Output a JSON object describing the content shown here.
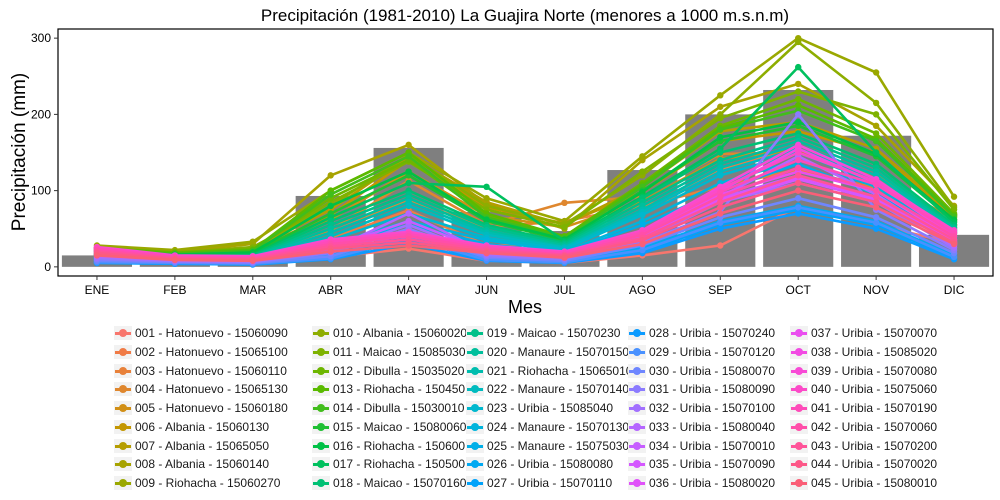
{
  "colors": {
    "bar": "#7f7f7f",
    "axis": "#000000",
    "text": "#000000"
  },
  "chart_data": {
    "type": "bar+line",
    "title": "Precipitación (1981-2010) La Guajira Norte (menores a 1000 m.s.n.m)",
    "xlabel": "Mes",
    "ylabel": "Precipitación (mm)",
    "ylim": [
      -12,
      312
    ],
    "yticks": [
      "0",
      "100",
      "200",
      "300"
    ],
    "ytick_values": [
      0,
      100,
      200,
      300
    ],
    "categories": [
      "ENE",
      "FEB",
      "MAR",
      "ABR",
      "MAY",
      "JUN",
      "JUL",
      "AGO",
      "SEP",
      "OCT",
      "NOV",
      "DIC"
    ],
    "bar_values": [
      15,
      10,
      12,
      93,
      156,
      72,
      47,
      127,
      200,
      232,
      172,
      42
    ],
    "grid": false,
    "legend_position": "bottom",
    "series": [
      {
        "name": "001 - Hatonuevo - 15060090",
        "color": "#F8766D",
        "values": [
          17,
          10,
          8,
          13,
          24,
          8,
          5,
          15,
          28,
          79,
          55,
          31
        ]
      },
      {
        "name": "002 - Hatonuevo - 15065100",
        "color": "#F07B46",
        "values": [
          14,
          13,
          14,
          37,
          74,
          28,
          30,
          72,
          128,
          155,
          115,
          52
        ]
      },
      {
        "name": "003 - Hatonuevo - 15060110",
        "color": "#E8813A",
        "values": [
          15,
          14,
          17,
          45,
          88,
          52,
          60,
          80,
          105,
          128,
          103,
          55
        ]
      },
      {
        "name": "004 - Hatonuevo - 15065130",
        "color": "#DF872E",
        "values": [
          13,
          15,
          18,
          48,
          113,
          55,
          84,
          92,
          148,
          150,
          115,
          55
        ]
      },
      {
        "name": "005 - Hatonuevo - 15060180",
        "color": "#D18F16",
        "values": [
          13,
          16,
          20,
          62,
          125,
          67,
          52,
          86,
          142,
          153,
          120,
          62
        ]
      },
      {
        "name": "006 - Albania - 15060130",
        "color": "#C39600",
        "values": [
          15,
          17,
          22,
          68,
          140,
          78,
          57,
          98,
          165,
          178,
          150,
          65
        ]
      },
      {
        "name": "007 - Albania - 15065050",
        "color": "#B59D00",
        "values": [
          16,
          18,
          24,
          75,
          145,
          85,
          55,
          105,
          178,
          190,
          155,
          68
        ]
      },
      {
        "name": "008 - Albania - 15060140",
        "color": "#A7A300",
        "values": [
          25,
          20,
          30,
          120,
          160,
          82,
          50,
          140,
          210,
          240,
          185,
          80
        ]
      },
      {
        "name": "009 - Riohacha - 15060270",
        "color": "#9AA800",
        "values": [
          28,
          22,
          33,
          100,
          150,
          90,
          60,
          145,
          225,
          300,
          255,
          92
        ]
      },
      {
        "name": "010 - Albania - 15060020",
        "color": "#8DAD00",
        "values": [
          22,
          19,
          26,
          80,
          147,
          80,
          56,
          120,
          200,
          295,
          215,
          78
        ]
      },
      {
        "name": "011 - Maicao - 15085030",
        "color": "#7EB200",
        "values": [
          20,
          17,
          25,
          85,
          138,
          75,
          52,
          125,
          195,
          230,
          200,
          75
        ]
      },
      {
        "name": "012 - Dibulla - 15035020",
        "color": "#6DB600",
        "values": [
          25,
          19,
          23,
          90,
          140,
          68,
          40,
          110,
          185,
          220,
          175,
          70
        ]
      },
      {
        "name": "013 - Riohacha - 15045010",
        "color": "#5ABA00",
        "values": [
          24,
          18,
          22,
          100,
          150,
          70,
          40,
          108,
          182,
          212,
          168,
          68
        ]
      },
      {
        "name": "014 - Dibulla - 15030010",
        "color": "#41BD1C",
        "values": [
          22,
          17,
          21,
          95,
          145,
          65,
          38,
          105,
          180,
          205,
          165,
          66
        ]
      },
      {
        "name": "015 - Maicao - 15080060",
        "color": "#1FBF33",
        "values": [
          18,
          15,
          18,
          70,
          120,
          60,
          35,
          100,
          165,
          185,
          145,
          60
        ]
      },
      {
        "name": "016 - Riohacha - 15060010",
        "color": "#00C046",
        "values": [
          20,
          16,
          19,
          80,
          125,
          62,
          36,
          98,
          170,
          190,
          148,
          62
        ]
      },
      {
        "name": "017 - Riohacha - 15050010",
        "color": "#00C05E",
        "values": [
          16,
          14,
          16,
          65,
          110,
          105,
          34,
          92,
          155,
          262,
          150,
          58
        ]
      },
      {
        "name": "018 - Maicao - 15070160",
        "color": "#00C074",
        "values": [
          15,
          13,
          15,
          60,
          100,
          55,
          32,
          90,
          150,
          175,
          135,
          55
        ]
      },
      {
        "name": "019 - Maicao - 15070230",
        "color": "#00C089",
        "values": [
          14,
          12,
          14,
          55,
          95,
          52,
          30,
          85,
          140,
          170,
          130,
          52
        ]
      },
      {
        "name": "020 - Manaure - 15070150",
        "color": "#00BF9C",
        "values": [
          13,
          11,
          13,
          50,
          90,
          48,
          28,
          80,
          135,
          165,
          125,
          50
        ]
      },
      {
        "name": "021 - Riohacha - 15065010",
        "color": "#00BDAE",
        "values": [
          12,
          10,
          12,
          45,
          85,
          45,
          26,
          75,
          130,
          160,
          120,
          48
        ]
      },
      {
        "name": "022 - Manaure - 15070140",
        "color": "#00BBBF",
        "values": [
          12,
          10,
          11,
          40,
          80,
          42,
          25,
          72,
          125,
          155,
          115,
          46
        ]
      },
      {
        "name": "023 - Uribia - 15085040",
        "color": "#00B8CE",
        "values": [
          11,
          9,
          10,
          35,
          70,
          38,
          23,
          68,
          120,
          150,
          110,
          44
        ]
      },
      {
        "name": "024 - Manaure - 15070130",
        "color": "#00B4DC",
        "values": [
          10,
          9,
          10,
          30,
          60,
          35,
          20,
          60,
          110,
          140,
          105,
          40
        ]
      },
      {
        "name": "025 - Manaure - 15075030",
        "color": "#00AFE8",
        "values": [
          10,
          8,
          9,
          28,
          55,
          30,
          18,
          55,
          100,
          135,
          95,
          38
        ]
      },
      {
        "name": "026 - Uribia - 15080080",
        "color": "#00A9F2",
        "values": [
          8,
          7,
          6,
          15,
          40,
          12,
          8,
          25,
          60,
          80,
          60,
          15
        ]
      },
      {
        "name": "027 - Uribia - 15070110",
        "color": "#00A2FA",
        "values": [
          6,
          5,
          4,
          12,
          35,
          10,
          6,
          20,
          55,
          75,
          55,
          12
        ]
      },
      {
        "name": "028 - Uribia - 15070240",
        "color": "#0B9BFF",
        "values": [
          5,
          4,
          3,
          10,
          30,
          8,
          5,
          18,
          50,
          70,
          50,
          10
        ]
      },
      {
        "name": "029 - Uribia - 15070120",
        "color": "#4991FF",
        "values": [
          6,
          5,
          4,
          11,
          38,
          9,
          6,
          22,
          58,
          78,
          58,
          13
        ]
      },
      {
        "name": "030 - Uribia - 15080070",
        "color": "#6E86FF",
        "values": [
          8,
          6,
          5,
          14,
          45,
          12,
          8,
          28,
          65,
          90,
          65,
          18
        ]
      },
      {
        "name": "031 - Uribia - 15080090",
        "color": "#8B7BFF",
        "values": [
          10,
          7,
          6,
          18,
          50,
          14,
          10,
          32,
          72,
          200,
          75,
          22
        ]
      },
      {
        "name": "032 - Uribia - 15070100",
        "color": "#A270FF",
        "values": [
          12,
          8,
          7,
          20,
          55,
          16,
          12,
          35,
          85,
          110,
          85,
          25
        ]
      },
      {
        "name": "033 - Uribia - 15080040",
        "color": "#B566FF",
        "values": [
          14,
          9,
          8,
          22,
          70,
          18,
          14,
          38,
          92,
          145,
          95,
          28
        ]
      },
      {
        "name": "034 - Uribia - 15070010",
        "color": "#C65EFF",
        "values": [
          16,
          10,
          9,
          25,
          60,
          20,
          15,
          40,
          90,
          120,
          90,
          30
        ]
      },
      {
        "name": "035 - Uribia - 15070090",
        "color": "#D457FF",
        "values": [
          18,
          11,
          10,
          28,
          45,
          22,
          16,
          42,
          85,
          115,
          88,
          32
        ]
      },
      {
        "name": "036 - Uribia - 15080020",
        "color": "#E052F9",
        "values": [
          20,
          12,
          11,
          30,
          40,
          24,
          17,
          44,
          88,
          118,
          92,
          34
        ]
      },
      {
        "name": "037 - Uribia - 15070070",
        "color": "#EA4EEF",
        "values": [
          22,
          13,
          12,
          32,
          42,
          25,
          18,
          45,
          95,
          125,
          100,
          36
        ]
      },
      {
        "name": "038 - Uribia - 15085020",
        "color": "#F24BE3",
        "values": [
          24,
          14,
          13,
          34,
          44,
          26,
          19,
          46,
          100,
          155,
          110,
          40
        ]
      },
      {
        "name": "039 - Uribia - 15070080",
        "color": "#F84AD6",
        "values": [
          26,
          15,
          14,
          36,
          46,
          28,
          20,
          48,
          105,
          160,
          115,
          45
        ]
      },
      {
        "name": "040 - Uribia - 15075060",
        "color": "#FC4AC8",
        "values": [
          25,
          14,
          13,
          35,
          45,
          27,
          19,
          47,
          102,
          150,
          112,
          48
        ]
      },
      {
        "name": "041 - Uribia - 15070190",
        "color": "#FE4BB9",
        "values": [
          24,
          13,
          12,
          33,
          43,
          26,
          18,
          45,
          98,
          140,
          108,
          44
        ]
      },
      {
        "name": "042 - Uribia - 15070060",
        "color": "#FF4EA9",
        "values": [
          22,
          12,
          11,
          30,
          40,
          24,
          16,
          42,
          92,
          130,
          100,
          40
        ]
      },
      {
        "name": "043 - Uribia - 15070200",
        "color": "#FF5399",
        "values": [
          20,
          11,
          10,
          27,
          36,
          22,
          15,
          38,
          85,
          120,
          92,
          36
        ]
      },
      {
        "name": "044 - Uribia - 15070020",
        "color": "#FD5888",
        "values": [
          18,
          10,
          9,
          24,
          32,
          20,
          14,
          35,
          78,
          110,
          85,
          32
        ]
      },
      {
        "name": "045 - Uribia - 15080010",
        "color": "#FA5F77",
        "values": [
          15,
          9,
          8,
          20,
          28,
          18,
          12,
          30,
          70,
          100,
          78,
          30
        ]
      }
    ]
  }
}
